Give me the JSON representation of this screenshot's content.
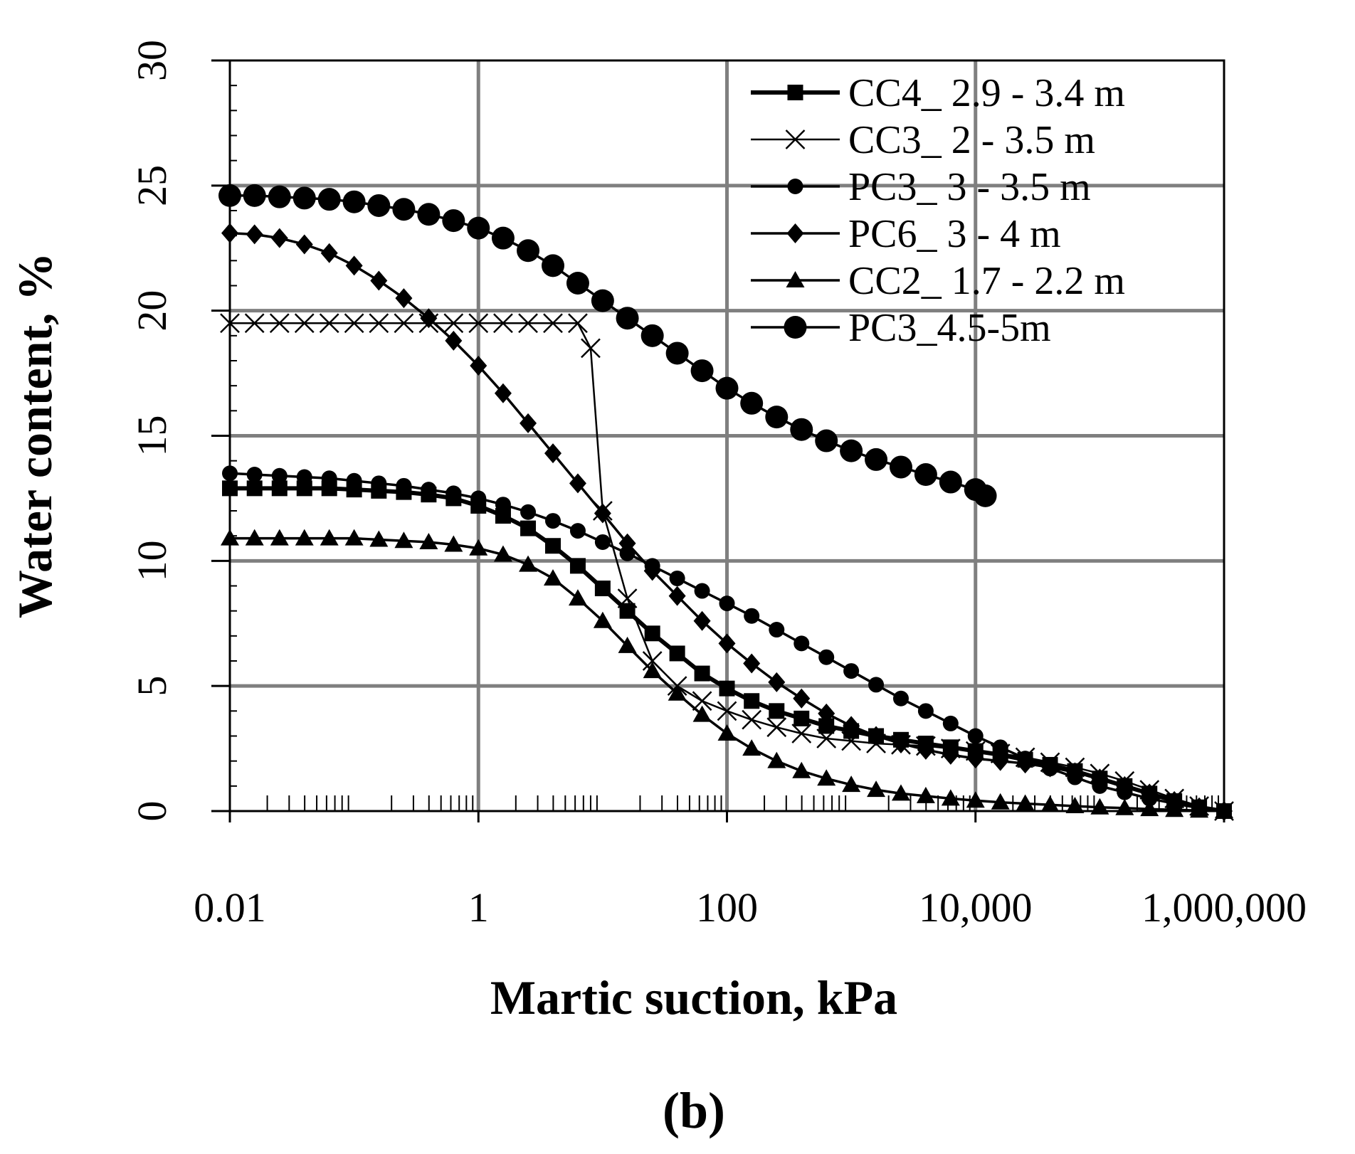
{
  "chart_data": {
    "type": "line",
    "xscale": "log",
    "xlabel": "Martic suction, kPa",
    "ylabel": "Water content, %",
    "panel_label": "(b)",
    "xlim": [
      0.01,
      1000000
    ],
    "ylim": [
      0,
      30
    ],
    "x_ticks": [
      {
        "value": 0.01,
        "label": "0.01"
      },
      {
        "value": 1,
        "label": "1"
      },
      {
        "value": 100,
        "label": "100"
      },
      {
        "value": 10000,
        "label": "10,000"
      },
      {
        "value": 1000000,
        "label": "1,000,000"
      }
    ],
    "y_ticks": [
      {
        "value": 0,
        "label": "0"
      },
      {
        "value": 5,
        "label": "5"
      },
      {
        "value": 10,
        "label": "10"
      },
      {
        "value": 15,
        "label": "15"
      },
      {
        "value": 20,
        "label": "20"
      },
      {
        "value": 25,
        "label": "25"
      },
      {
        "value": 30,
        "label": "30"
      }
    ],
    "grid": true,
    "legend_position": "top-right",
    "series": [
      {
        "name": "CC4_ 2.9 - 3.4 m",
        "marker": "square",
        "line_style": "bold",
        "points": [
          [
            0.01,
            12.9
          ],
          [
            0.0158,
            12.9
          ],
          [
            0.0251,
            12.9
          ],
          [
            0.0398,
            12.9
          ],
          [
            0.0631,
            12.9
          ],
          [
            0.1,
            12.85
          ],
          [
            0.158,
            12.8
          ],
          [
            0.251,
            12.75
          ],
          [
            0.398,
            12.65
          ],
          [
            0.631,
            12.5
          ],
          [
            1,
            12.2
          ],
          [
            1.58,
            11.8
          ],
          [
            2.51,
            11.3
          ],
          [
            3.98,
            10.6
          ],
          [
            6.31,
            9.8
          ],
          [
            10,
            8.9
          ],
          [
            15.8,
            8.0
          ],
          [
            25.1,
            7.1
          ],
          [
            39.8,
            6.3
          ],
          [
            63.1,
            5.5
          ],
          [
            100,
            4.9
          ],
          [
            158,
            4.4
          ],
          [
            251,
            4.0
          ],
          [
            398,
            3.7
          ],
          [
            631,
            3.4
          ],
          [
            1000,
            3.2
          ],
          [
            1585,
            3.0
          ],
          [
            2512,
            2.85
          ],
          [
            3981,
            2.7
          ],
          [
            6310,
            2.55
          ],
          [
            10000,
            2.4
          ],
          [
            15850,
            2.25
          ],
          [
            25120,
            2.05
          ],
          [
            39810,
            1.85
          ],
          [
            63100,
            1.6
          ],
          [
            100000,
            1.3
          ],
          [
            158500,
            1.0
          ],
          [
            251200,
            0.7
          ],
          [
            398100,
            0.4
          ],
          [
            631000,
            0.15
          ],
          [
            1000000,
            0
          ]
        ]
      },
      {
        "name": "CC3_ 2 - 3.5 m",
        "marker": "x",
        "line_style": "thin",
        "points": [
          [
            0.01,
            19.5
          ],
          [
            0.0158,
            19.5
          ],
          [
            0.0251,
            19.5
          ],
          [
            0.0398,
            19.5
          ],
          [
            0.0631,
            19.5
          ],
          [
            0.1,
            19.5
          ],
          [
            0.158,
            19.5
          ],
          [
            0.251,
            19.5
          ],
          [
            0.398,
            19.5
          ],
          [
            0.631,
            19.5
          ],
          [
            1,
            19.5
          ],
          [
            1.58,
            19.5
          ],
          [
            2.51,
            19.5
          ],
          [
            3.98,
            19.5
          ],
          [
            6.31,
            19.5
          ],
          [
            8,
            18.5
          ],
          [
            10,
            12
          ],
          [
            15.8,
            8.5
          ],
          [
            25.1,
            6.0
          ],
          [
            39.8,
            5.0
          ],
          [
            63.1,
            4.4
          ],
          [
            100,
            4.0
          ],
          [
            158,
            3.65
          ],
          [
            251,
            3.35
          ],
          [
            398,
            3.1
          ],
          [
            631,
            2.9
          ],
          [
            1000,
            2.8
          ],
          [
            1585,
            2.7
          ],
          [
            2512,
            2.65
          ],
          [
            3981,
            2.6
          ],
          [
            6310,
            2.5
          ],
          [
            10000,
            2.4
          ],
          [
            15850,
            2.3
          ],
          [
            25120,
            2.15
          ],
          [
            39810,
            1.95
          ],
          [
            63100,
            1.75
          ],
          [
            100000,
            1.5
          ],
          [
            158500,
            1.2
          ],
          [
            251200,
            0.85
          ],
          [
            398100,
            0.5
          ],
          [
            631000,
            0.2
          ],
          [
            1000000,
            0
          ]
        ]
      },
      {
        "name": "PC3_ 3 - 3.5 m",
        "marker": "circle-small",
        "line_style": "medium",
        "points": [
          [
            0.01,
            13.5
          ],
          [
            0.0158,
            13.45
          ],
          [
            0.0251,
            13.4
          ],
          [
            0.0398,
            13.35
          ],
          [
            0.0631,
            13.3
          ],
          [
            0.1,
            13.2
          ],
          [
            0.158,
            13.1
          ],
          [
            0.251,
            13.0
          ],
          [
            0.398,
            12.85
          ],
          [
            0.631,
            12.7
          ],
          [
            1,
            12.5
          ],
          [
            1.58,
            12.25
          ],
          [
            2.51,
            11.95
          ],
          [
            3.98,
            11.6
          ],
          [
            6.31,
            11.2
          ],
          [
            10,
            10.75
          ],
          [
            15.8,
            10.3
          ],
          [
            25.1,
            9.8
          ],
          [
            39.8,
            9.3
          ],
          [
            63.1,
            8.8
          ],
          [
            100,
            8.3
          ],
          [
            158,
            7.8
          ],
          [
            251,
            7.25
          ],
          [
            398,
            6.7
          ],
          [
            631,
            6.15
          ],
          [
            1000,
            5.6
          ],
          [
            1585,
            5.05
          ],
          [
            2512,
            4.5
          ],
          [
            3981,
            4.0
          ],
          [
            6310,
            3.5
          ],
          [
            10000,
            3.0
          ],
          [
            15850,
            2.55
          ],
          [
            25120,
            2.1
          ],
          [
            39810,
            1.7
          ],
          [
            63100,
            1.35
          ],
          [
            100000,
            1.0
          ],
          [
            158500,
            0.75
          ],
          [
            251200,
            0.5
          ],
          [
            398100,
            0.3
          ],
          [
            631000,
            0.12
          ],
          [
            1000000,
            0
          ]
        ]
      },
      {
        "name": "PC6_ 3 - 4 m",
        "marker": "diamond",
        "line_style": "medium",
        "points": [
          [
            0.01,
            23.1
          ],
          [
            0.0158,
            23.05
          ],
          [
            0.0251,
            22.9
          ],
          [
            0.0398,
            22.65
          ],
          [
            0.0631,
            22.3
          ],
          [
            0.1,
            21.8
          ],
          [
            0.158,
            21.2
          ],
          [
            0.251,
            20.5
          ],
          [
            0.398,
            19.7
          ],
          [
            0.631,
            18.8
          ],
          [
            1,
            17.8
          ],
          [
            1.58,
            16.7
          ],
          [
            2.51,
            15.5
          ],
          [
            3.98,
            14.3
          ],
          [
            6.31,
            13.1
          ],
          [
            10,
            11.9
          ],
          [
            15.8,
            10.7
          ],
          [
            25.1,
            9.6
          ],
          [
            39.8,
            8.6
          ],
          [
            63.1,
            7.6
          ],
          [
            100,
            6.7
          ],
          [
            158,
            5.9
          ],
          [
            251,
            5.15
          ],
          [
            398,
            4.5
          ],
          [
            631,
            3.9
          ],
          [
            1000,
            3.4
          ],
          [
            1585,
            3.0
          ],
          [
            2512,
            2.7
          ],
          [
            3981,
            2.45
          ],
          [
            6310,
            2.25
          ],
          [
            10000,
            2.1
          ],
          [
            15850,
            2.0
          ],
          [
            25120,
            1.9
          ],
          [
            39810,
            1.75
          ],
          [
            63100,
            1.55
          ],
          [
            100000,
            1.3
          ],
          [
            158500,
            1.0
          ],
          [
            251200,
            0.7
          ],
          [
            398100,
            0.4
          ],
          [
            631000,
            0.15
          ],
          [
            1000000,
            0
          ]
        ]
      },
      {
        "name": "CC2_ 1.7 - 2.2 m",
        "marker": "triangle",
        "line_style": "medium",
        "points": [
          [
            0.01,
            10.9
          ],
          [
            0.0158,
            10.9
          ],
          [
            0.0251,
            10.9
          ],
          [
            0.0398,
            10.9
          ],
          [
            0.0631,
            10.9
          ],
          [
            0.1,
            10.9
          ],
          [
            0.158,
            10.85
          ],
          [
            0.251,
            10.8
          ],
          [
            0.398,
            10.75
          ],
          [
            0.631,
            10.65
          ],
          [
            1,
            10.5
          ],
          [
            1.58,
            10.25
          ],
          [
            2.51,
            9.85
          ],
          [
            3.98,
            9.3
          ],
          [
            6.31,
            8.5
          ],
          [
            10,
            7.6
          ],
          [
            15.8,
            6.6
          ],
          [
            25.1,
            5.6
          ],
          [
            39.8,
            4.7
          ],
          [
            63.1,
            3.85
          ],
          [
            100,
            3.1
          ],
          [
            158,
            2.5
          ],
          [
            251,
            2.0
          ],
          [
            398,
            1.6
          ],
          [
            631,
            1.3
          ],
          [
            1000,
            1.05
          ],
          [
            1585,
            0.85
          ],
          [
            2512,
            0.7
          ],
          [
            3981,
            0.6
          ],
          [
            6310,
            0.5
          ],
          [
            10000,
            0.42
          ],
          [
            15850,
            0.35
          ],
          [
            25120,
            0.3
          ],
          [
            39810,
            0.25
          ],
          [
            63100,
            0.2
          ],
          [
            100000,
            0.15
          ],
          [
            158500,
            0.12
          ],
          [
            251200,
            0.08
          ],
          [
            398100,
            0.05
          ],
          [
            631000,
            0.02
          ],
          [
            1000000,
            0
          ]
        ]
      },
      {
        "name": "PC3_4.5-5m",
        "marker": "circle-large",
        "line_style": "medium",
        "points": [
          [
            0.01,
            24.6
          ],
          [
            0.0158,
            24.6
          ],
          [
            0.0251,
            24.55
          ],
          [
            0.0398,
            24.5
          ],
          [
            0.0631,
            24.45
          ],
          [
            0.1,
            24.35
          ],
          [
            0.158,
            24.2
          ],
          [
            0.251,
            24.05
          ],
          [
            0.398,
            23.85
          ],
          [
            0.631,
            23.6
          ],
          [
            1,
            23.3
          ],
          [
            1.58,
            22.9
          ],
          [
            2.51,
            22.4
          ],
          [
            3.98,
            21.8
          ],
          [
            6.31,
            21.1
          ],
          [
            10,
            20.4
          ],
          [
            15.8,
            19.7
          ],
          [
            25.1,
            19.0
          ],
          [
            39.8,
            18.3
          ],
          [
            63.1,
            17.6
          ],
          [
            100,
            16.9
          ],
          [
            158,
            16.3
          ],
          [
            251,
            15.75
          ],
          [
            398,
            15.25
          ],
          [
            631,
            14.8
          ],
          [
            1000,
            14.4
          ],
          [
            1585,
            14.05
          ],
          [
            2512,
            13.75
          ],
          [
            3981,
            13.45
          ],
          [
            6310,
            13.15
          ],
          [
            10000,
            12.85
          ],
          [
            12000,
            12.6
          ]
        ]
      }
    ]
  }
}
